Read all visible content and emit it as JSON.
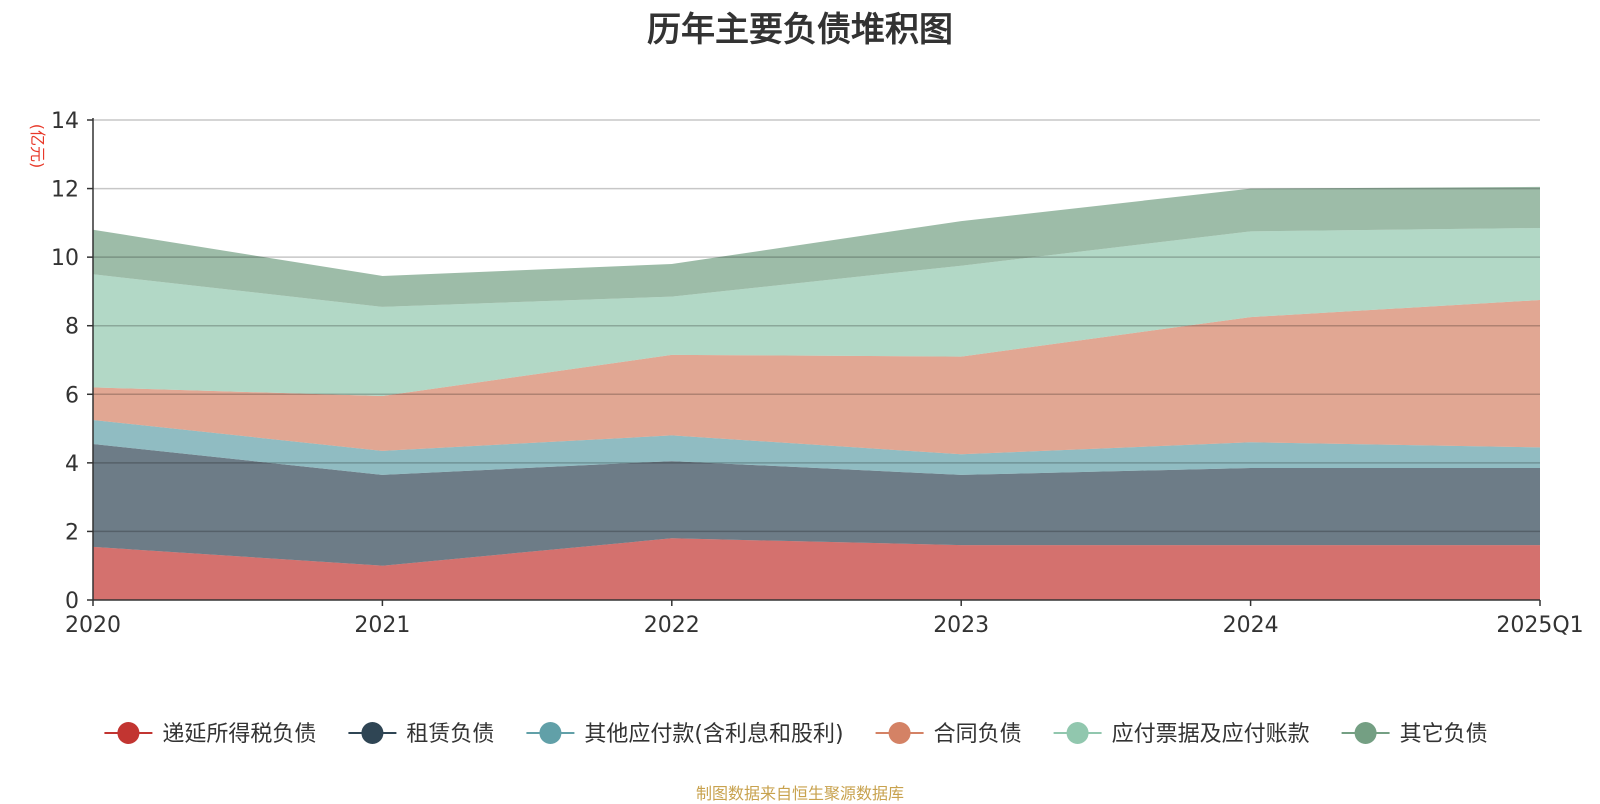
{
  "chart_data": {
    "type": "area",
    "stacked": true,
    "title": "历年主要负债堆积图",
    "ylabel": "(亿元)",
    "xlabel": "",
    "categories": [
      "2020",
      "2021",
      "2022",
      "2023",
      "2024",
      "2025Q1"
    ],
    "ylim": [
      0,
      14
    ],
    "yticks": [
      0,
      2,
      4,
      6,
      8,
      10,
      12,
      14
    ],
    "grid": true,
    "legend_position": "bottom",
    "series": [
      {
        "name": "递延所得税负债",
        "color": "#c23531",
        "values": [
          1.55,
          1.0,
          1.8,
          1.6,
          1.6,
          1.6
        ]
      },
      {
        "name": "租赁负债",
        "color": "#2f4554",
        "values": [
          3.0,
          2.65,
          2.25,
          2.05,
          2.25,
          2.25
        ]
      },
      {
        "name": "其他应付款(含利息和股利)",
        "color": "#61a0a8",
        "values": [
          0.7,
          0.7,
          0.75,
          0.6,
          0.75,
          0.6
        ]
      },
      {
        "name": "合同负债",
        "color": "#d48265",
        "values": [
          0.95,
          1.6,
          2.35,
          2.85,
          3.65,
          4.3
        ]
      },
      {
        "name": "应付票据及应付账款",
        "color": "#91c7ae",
        "values": [
          3.3,
          2.6,
          1.7,
          2.65,
          2.5,
          2.1
        ]
      },
      {
        "name": "其它负债",
        "color": "#749f83",
        "values": [
          1.3,
          0.9,
          0.95,
          1.3,
          1.25,
          1.2
        ]
      }
    ]
  },
  "source": "制图数据来自恒生聚源数据库"
}
